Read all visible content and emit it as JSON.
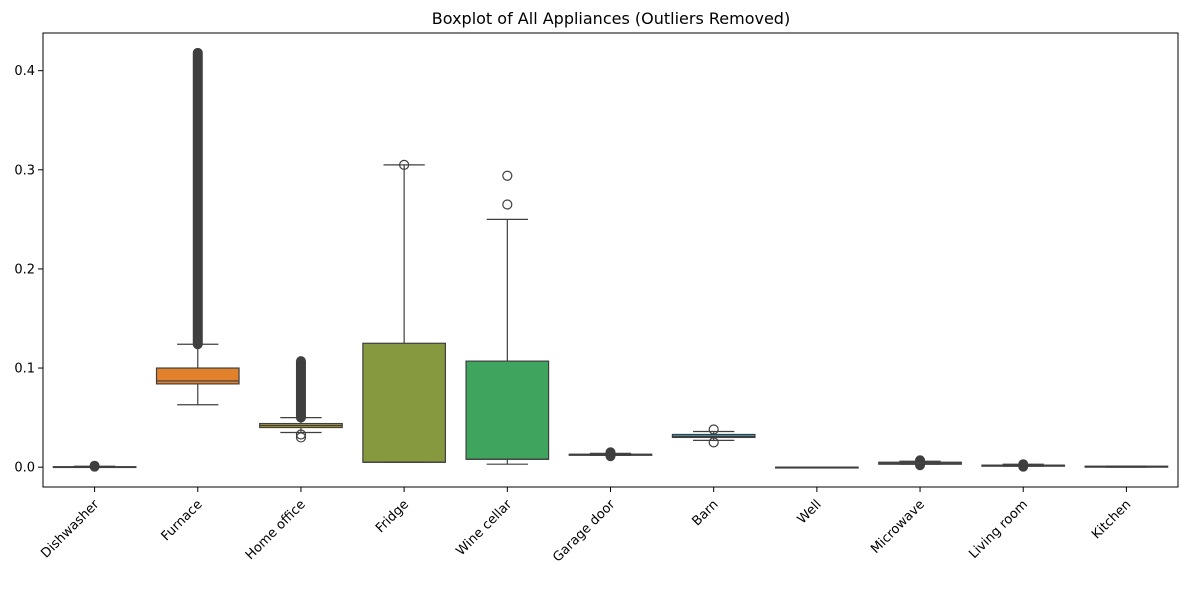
{
  "chart_data": {
    "type": "boxplot",
    "title": "Boxplot of All Appliances (Outliers Removed)",
    "xlabel": "",
    "ylabel": "",
    "ylim": [
      -0.02,
      0.438
    ],
    "y_ticks": [
      0.0,
      0.1,
      0.2,
      0.3,
      0.4
    ],
    "y_tick_labels": [
      "0.0",
      "0.1",
      "0.2",
      "0.3",
      "0.4"
    ],
    "grid": false,
    "categories": [
      "Dishwasher",
      "Furnace",
      "Home office",
      "Fridge",
      "Wine cellar",
      "Garage door",
      "Barn",
      "Well",
      "Microwave",
      "Living room",
      "Kitchen"
    ],
    "boxes": [
      {
        "category": "Dishwasher",
        "color": "#3274a1",
        "whisker_low": 0.0,
        "q1": 0.0,
        "median": 0.0,
        "q3": 0.0005,
        "whisker_high": 0.001,
        "outlier_range": [
          0.0005,
          0.0015
        ],
        "outliers": []
      },
      {
        "category": "Furnace",
        "color": "#e1812c",
        "whisker_low": 0.063,
        "q1": 0.084,
        "median": 0.087,
        "q3": 0.1,
        "whisker_high": 0.124,
        "outlier_range": [
          0.124,
          0.418
        ],
        "outliers": []
      },
      {
        "category": "Home office",
        "color": "#aa9a2f",
        "whisker_low": 0.035,
        "q1": 0.04,
        "median": 0.042,
        "q3": 0.044,
        "whisker_high": 0.05,
        "outlier_range": [
          0.05,
          0.107
        ],
        "outliers": [
          0.03,
          0.033
        ]
      },
      {
        "category": "Fridge",
        "color": "#86993f",
        "whisker_low": 0.005,
        "q1": 0.005,
        "median": 0.005,
        "q3": 0.125,
        "whisker_high": 0.305,
        "outliers": [
          0.305
        ]
      },
      {
        "category": "Wine cellar",
        "color": "#3ea45e",
        "whisker_low": 0.003,
        "q1": 0.008,
        "median": 0.008,
        "q3": 0.107,
        "whisker_high": 0.25,
        "outliers": [
          0.265,
          0.294
        ]
      },
      {
        "category": "Garage door",
        "color": "#3ca391",
        "whisker_low": 0.012,
        "q1": 0.012,
        "median": 0.013,
        "q3": 0.013,
        "whisker_high": 0.014,
        "outlier_range": [
          0.011,
          0.015
        ],
        "outliers": []
      },
      {
        "category": "Barn",
        "color": "#3d9ebf",
        "whisker_low": 0.027,
        "q1": 0.03,
        "median": 0.031,
        "q3": 0.033,
        "whisker_high": 0.036,
        "outliers": [
          0.025,
          0.038
        ]
      },
      {
        "category": "Well",
        "color": "#5c8fd6",
        "whisker_low": 0.0,
        "q1": 0.0,
        "median": 0.0,
        "q3": 0.0,
        "whisker_high": 0.0,
        "outliers": []
      },
      {
        "category": "Microwave",
        "color": "#a07dc8",
        "whisker_low": 0.003,
        "q1": 0.003,
        "median": 0.004,
        "q3": 0.005,
        "whisker_high": 0.006,
        "outlier_range": [
          0.002,
          0.007
        ],
        "outliers": []
      },
      {
        "category": "Living room",
        "color": "#d276c0",
        "whisker_low": 0.001,
        "q1": 0.001,
        "median": 0.002,
        "q3": 0.002,
        "whisker_high": 0.003,
        "outlier_range": [
          0.0005,
          0.003
        ],
        "outliers": []
      },
      {
        "category": "Kitchen",
        "color": "#e1789a",
        "whisker_low": 0.0,
        "q1": 0.0,
        "median": 0.0005,
        "q3": 0.001,
        "whisker_high": 0.001,
        "outliers": []
      }
    ]
  }
}
